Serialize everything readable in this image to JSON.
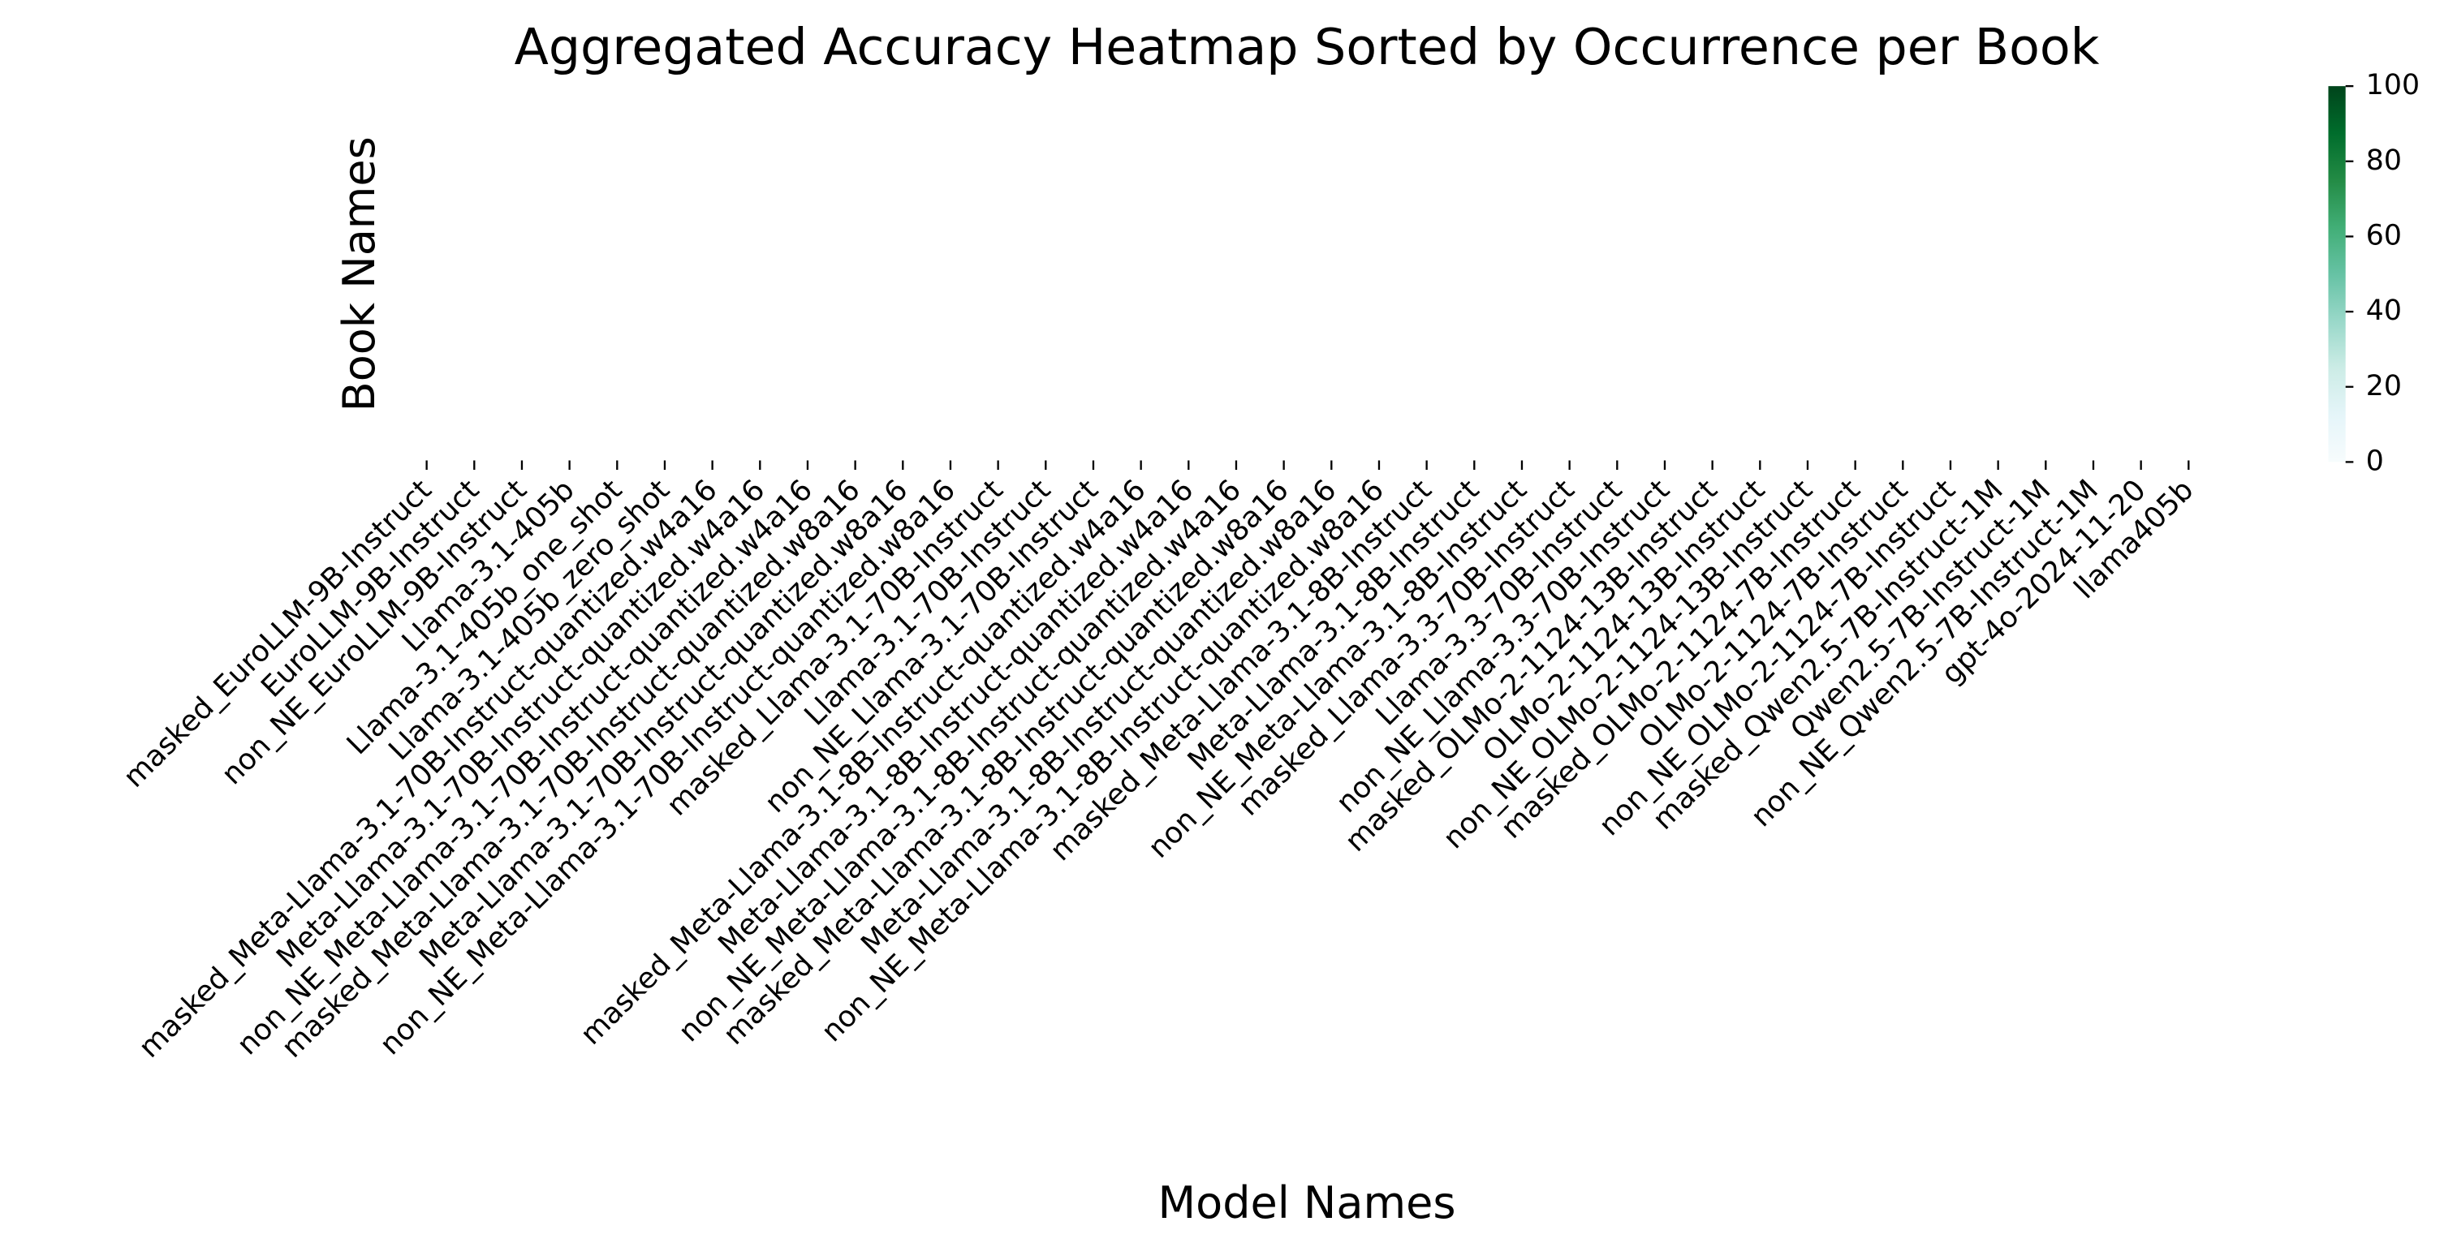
{
  "chart_data": {
    "type": "heatmap",
    "title": "Aggregated Accuracy Heatmap Sorted by Occurrence per Book",
    "xlabel": "Model Names",
    "ylabel": "Book Names",
    "categories": [
      "masked_EuroLLM-9B-Instruct",
      "EuroLLM-9B-Instruct",
      "non_NE_EuroLLM-9B-Instruct",
      "Llama-3.1-405b",
      "Llama-3.1-405b_one_shot",
      "Llama-3.1-405b_zero_shot",
      "masked_Meta-Llama-3.1-70B-Instruct-quantized.w4a16",
      "Meta-Llama-3.1-70B-Instruct-quantized.w4a16",
      "non_NE_Meta-Llama-3.1-70B-Instruct-quantized.w4a16",
      "masked_Meta-Llama-3.1-70B-Instruct-quantized.w8a16",
      "Meta-Llama-3.1-70B-Instruct-quantized.w8a16",
      "non_NE_Meta-Llama-3.1-70B-Instruct-quantized.w8a16",
      "masked_Llama-3.1-70B-Instruct",
      "Llama-3.1-70B-Instruct",
      "non_NE_Llama-3.1-70B-Instruct",
      "masked_Meta-Llama-3.1-8B-Instruct-quantized.w4a16",
      "Meta-Llama-3.1-8B-Instruct-quantized.w4a16",
      "non_NE_Meta-Llama-3.1-8B-Instruct-quantized.w4a16",
      "masked_Meta-Llama-3.1-8B-Instruct-quantized.w8a16",
      "Meta-Llama-3.1-8B-Instruct-quantized.w8a16",
      "non_NE_Meta-Llama-3.1-8B-Instruct-quantized.w8a16",
      "masked_Meta-Llama-3.1-8B-Instruct",
      "Meta-Llama-3.1-8B-Instruct",
      "non_NE_Meta-Llama-3.1-8B-Instruct",
      "masked_Llama-3.3-70B-Instruct",
      "Llama-3.3-70B-Instruct",
      "non_NE_Llama-3.3-70B-Instruct",
      "masked_OLMo-2-1124-13B-Instruct",
      "OLMo-2-1124-13B-Instruct",
      "non_NE_OLMo-2-1124-13B-Instruct",
      "masked_OLMo-2-1124-7B-Instruct",
      "OLMo-2-1124-7B-Instruct",
      "non_NE_OLMo-2-1124-7B-Instruct",
      "masked_Qwen2.5-7B-Instruct-1M",
      "Qwen2.5-7B-Instruct-1M",
      "non_NE_Qwen2.5-7B-Instruct-1M",
      "gpt-4o-2024-11-20",
      "llama405b"
    ],
    "colorbar": {
      "lim": [
        0,
        100
      ],
      "ticks": [
        0,
        20,
        40,
        60,
        80,
        100
      ],
      "colors": [
        "#f7fcfd",
        "#e5f5f9",
        "#ccece6",
        "#99d8c9",
        "#66c2a4",
        "#41ae76",
        "#238b45",
        "#006d2c",
        "#00441b"
      ]
    }
  }
}
